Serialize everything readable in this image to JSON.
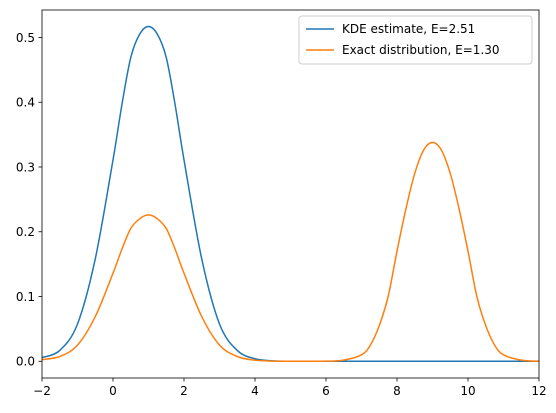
{
  "chart_data": {
    "type": "line",
    "title": "",
    "xlabel": "",
    "ylabel": "",
    "xlim": [
      -2,
      12
    ],
    "ylim": [
      -0.0258,
      0.5424
    ],
    "xticks": [
      -2,
      0,
      2,
      4,
      6,
      8,
      10,
      12
    ],
    "xtick_labels": [
      "−2",
      "0",
      "2",
      "4",
      "6",
      "8",
      "10",
      "12"
    ],
    "yticks": [
      0.0,
      0.1,
      0.2,
      0.3,
      0.4,
      0.5
    ],
    "ytick_labels": [
      "0.0",
      "0.1",
      "0.2",
      "0.3",
      "0.4",
      "0.5"
    ],
    "grid": false,
    "legend_position": "top-right",
    "x": [
      -2.0,
      -1.5,
      -1.0,
      -0.5,
      0.0,
      0.25,
      0.5,
      0.75,
      1.0,
      1.25,
      1.5,
      1.75,
      2.0,
      2.5,
      3.0,
      3.5,
      4.0,
      4.5,
      5.0,
      5.5,
      6.0,
      6.5,
      7.0,
      7.25,
      7.5,
      7.75,
      8.0,
      8.25,
      8.5,
      8.75,
      9.0,
      9.25,
      9.5,
      9.75,
      10.0,
      10.25,
      10.5,
      10.75,
      11.0,
      11.5,
      12.0
    ],
    "series": [
      {
        "name": "KDE estimate, E=2.51",
        "color": "#1f77b4",
        "values": [
          0.0057,
          0.0168,
          0.0576,
          0.158,
          0.311,
          0.396,
          0.469,
          0.505,
          0.517,
          0.505,
          0.469,
          0.396,
          0.311,
          0.158,
          0.0576,
          0.0168,
          0.0039,
          0.0007,
          0.0001,
          0.0,
          0.0,
          0.0,
          0.0,
          0.0,
          0.0,
          0.0,
          0.0,
          0.0,
          0.0,
          0.0,
          0.0,
          0.0,
          0.0,
          0.0,
          0.0,
          0.0,
          0.0,
          0.0,
          0.0,
          0.0,
          0.0
        ]
      },
      {
        "name": "Exact distribution, E=1.30",
        "color": "#ff7f0e",
        "values": [
          0.0025,
          0.0074,
          0.025,
          0.069,
          0.136,
          0.173,
          0.205,
          0.22,
          0.226,
          0.22,
          0.205,
          0.173,
          0.136,
          0.069,
          0.025,
          0.0074,
          0.0017,
          0.0003,
          0.0,
          0.0,
          0.0002,
          0.0018,
          0.01,
          0.025,
          0.055,
          0.1,
          0.17,
          0.235,
          0.29,
          0.326,
          0.338,
          0.326,
          0.29,
          0.235,
          0.17,
          0.1,
          0.055,
          0.025,
          0.01,
          0.0018,
          0.0002
        ]
      }
    ]
  }
}
